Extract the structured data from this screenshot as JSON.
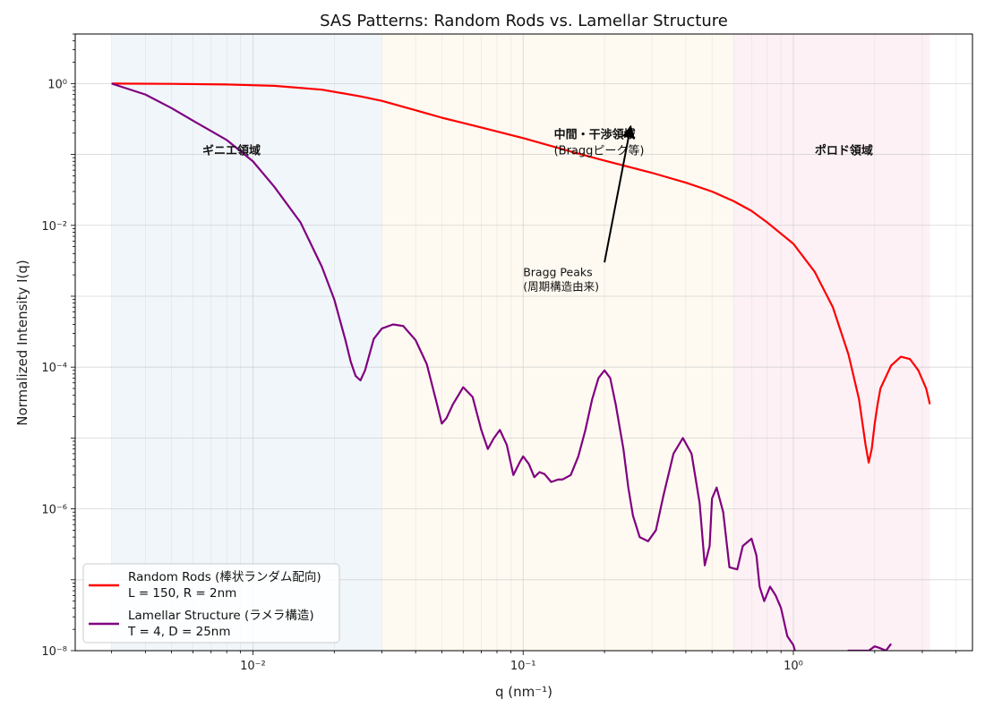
{
  "chart_data": {
    "type": "line",
    "title": "SAS Patterns: Random Rods vs. Lamellar Structure",
    "xlabel": "q (nm⁻¹)",
    "ylabel": "Normalized Intensity I(q)",
    "xscale": "log",
    "yscale": "log",
    "xlim": [
      0.0022,
      4.6
    ],
    "ylim": [
      1e-08,
      5
    ],
    "grid": true,
    "legend_position": "lower-left",
    "x_ticks": [
      {
        "value": 0.01,
        "label": "10⁻²"
      },
      {
        "value": 0.1,
        "label": "10⁻¹"
      },
      {
        "value": 1,
        "label": "10⁰"
      }
    ],
    "y_ticks": [
      {
        "value": 1,
        "label": "10⁰"
      },
      {
        "value": 0.01,
        "label": "10⁻²"
      },
      {
        "value": 0.0001,
        "label": "10⁻⁴"
      },
      {
        "value": 1e-06,
        "label": "10⁻⁶"
      },
      {
        "value": 1e-08,
        "label": "10⁻⁸"
      }
    ],
    "regions": [
      {
        "name": "ギニエ領域",
        "x_start": 0.003,
        "x_end": 0.03,
        "color": "#d6e6f0",
        "label_x": 0.0065,
        "label_y": 0.1
      },
      {
        "name": "中間・干渉領域\n(Braggピーク等)",
        "x_start": 0.03,
        "x_end": 0.6,
        "color": "#fbf2d8",
        "label_x": 0.13,
        "label_y": 0.1
      },
      {
        "name": "ポロド領域",
        "x_start": 0.6,
        "x_end": 3.2,
        "color": "#f8d6e4",
        "label_x": 1.2,
        "label_y": 0.1
      }
    ],
    "annotations": [
      {
        "text": "Bragg Peaks\n(周期構造由来)",
        "text_x": 0.1,
        "text_y": 0.0012,
        "arrow_from_x": 0.2,
        "arrow_from_y": 0.003,
        "arrow_to_x": 0.25,
        "arrow_to_y": 0.25
      }
    ],
    "series": [
      {
        "name": "Random Rods (棒状ランダム配向)\nL = 150, R = 2nm",
        "color": "#ff0000",
        "x": [
          0.003,
          0.005,
          0.008,
          0.012,
          0.018,
          0.025,
          0.03,
          0.04,
          0.05,
          0.07,
          0.1,
          0.15,
          0.2,
          0.3,
          0.4,
          0.5,
          0.6,
          0.7,
          0.8,
          1.0,
          1.2,
          1.4,
          1.6,
          1.75,
          1.85,
          1.9,
          1.95,
          2.0,
          2.05,
          2.1,
          2.3,
          2.5,
          2.7,
          2.9,
          3.1,
          3.2
        ],
        "y": [
          1.0,
          0.99,
          0.97,
          0.93,
          0.82,
          0.66,
          0.57,
          0.42,
          0.33,
          0.24,
          0.17,
          0.11,
          0.082,
          0.055,
          0.04,
          0.03,
          0.022,
          0.016,
          0.011,
          0.0055,
          0.0022,
          0.0007,
          0.00015,
          3.5e-05,
          8e-06,
          4.5e-06,
          7e-06,
          1.6e-05,
          3e-05,
          5e-05,
          0.000105,
          0.00014,
          0.00013,
          9e-05,
          5e-05,
          3e-05
        ]
      },
      {
        "name": "Lamellar Structure (ラメラ構造)\nT = 4, D = 25nm",
        "color": "#800080",
        "x": [
          0.003,
          0.004,
          0.005,
          0.006,
          0.008,
          0.01,
          0.012,
          0.015,
          0.018,
          0.02,
          0.022,
          0.023,
          0.024,
          0.025,
          0.026,
          0.028,
          0.03,
          0.033,
          0.036,
          0.04,
          0.044,
          0.048,
          0.05,
          0.052,
          0.055,
          0.06,
          0.065,
          0.07,
          0.074,
          0.078,
          0.082,
          0.087,
          0.092,
          0.097,
          0.1,
          0.105,
          0.11,
          0.115,
          0.12,
          0.127,
          0.135,
          0.14,
          0.15,
          0.16,
          0.17,
          0.18,
          0.19,
          0.2,
          0.21,
          0.22,
          0.235,
          0.245,
          0.255,
          0.27,
          0.29,
          0.31,
          0.33,
          0.36,
          0.39,
          0.42,
          0.45,
          0.47,
          0.49,
          0.5,
          0.52,
          0.55,
          0.58,
          0.62,
          0.65,
          0.7,
          0.73,
          0.75,
          0.78,
          0.82,
          0.86,
          0.9,
          0.95,
          1.0,
          1.05,
          1.1,
          1.15,
          1.2,
          1.3,
          1.4,
          1.6,
          1.8,
          1.9,
          2.0,
          2.1,
          2.2,
          2.3
        ],
        "y": [
          1.0,
          0.7,
          0.45,
          0.3,
          0.16,
          0.08,
          0.035,
          0.011,
          0.0026,
          0.0009,
          0.00024,
          0.00012,
          7.5e-05,
          6.5e-05,
          9e-05,
          0.00025,
          0.00035,
          0.0004,
          0.00038,
          0.00024,
          0.00011,
          3e-05,
          1.6e-05,
          1.9e-05,
          3e-05,
          5.2e-05,
          3.8e-05,
          1.3e-05,
          7e-06,
          1e-05,
          1.3e-05,
          8e-06,
          3e-06,
          4.5e-06,
          5.5e-06,
          4.3e-06,
          2.8e-06,
          3.3e-06,
          3.1e-06,
          2.4e-06,
          2.6e-06,
          2.6e-06,
          3e-06,
          5.5e-06,
          1.3e-05,
          3.5e-05,
          7e-05,
          9e-05,
          7e-05,
          3e-05,
          7e-06,
          2e-06,
          8e-07,
          4e-07,
          3.5e-07,
          5e-07,
          1.5e-06,
          6e-06,
          1e-05,
          6e-06,
          1.2e-06,
          1.6e-07,
          3e-07,
          1.4e-06,
          2e-06,
          9e-07,
          1.5e-07,
          1.4e-07,
          3e-07,
          3.8e-07,
          2.2e-07,
          8e-08,
          5e-08,
          8e-08,
          6e-08,
          4e-08,
          1.6e-08,
          1.2e-08,
          6e-09,
          7e-09,
          7e-09,
          7.5e-09,
          7e-09,
          8e-09,
          1e-08,
          1e-08,
          1e-08,
          1.15e-08,
          1.08e-08,
          1e-08,
          1.25e-08
        ]
      }
    ]
  }
}
